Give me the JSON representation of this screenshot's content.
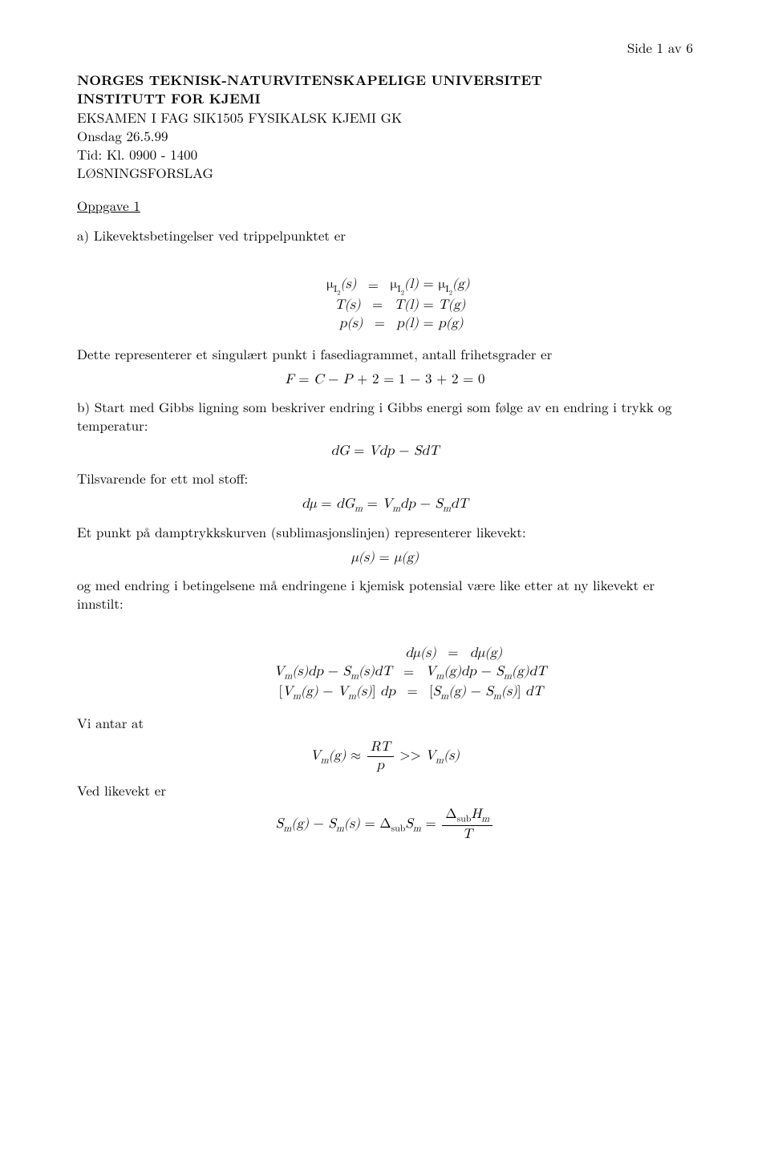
{
  "page": {
    "number_label": "Side 1 av 6"
  },
  "header": {
    "line1": "NORGES TEKNISK-NATURVITENSKAPELIGE UNIVERSITET",
    "line2": "INSTITUTT FOR KJEMI",
    "line3": "EKSAMEN I FAG SIK1505 FYSIKALSK KJEMI GK",
    "line4": "Onsdag 26.5.99",
    "line5": "Tid:  Kl. 0900 - 1400",
    "line6": "LØSNINGSFORSLAG"
  },
  "oppgave1": {
    "title": "Oppgave 1",
    "a_intro": "a)  Likevektsbetingelser ved trippelpunktet er",
    "eq1": {
      "r1_l": "μI₂(s)",
      "r1_m": "=",
      "r1_r": "μI₂(l) = μI₂(g)",
      "r2_l": "T(s)",
      "r2_m": "=",
      "r2_r": "T(l) = T(g)",
      "r3_l": "p(s)",
      "r3_m": "=",
      "r3_r": "p(l) = p(g)"
    },
    "a_after1": "Dette representerer et singulært punkt i fasediagrammet, antall frihetsgrader er",
    "eq2": "F = C − P + 2 = 1 − 3 + 2 = 0",
    "b_intro": "b)  Start med Gibbs ligning som beskriver endring i Gibbs energi som følge av en endring i trykk og temperatur:",
    "eq3": "dG = Vdp − SdT",
    "b_after1": "Tilsvarende for ett mol stoff:",
    "eq4": "dμ = dGₘ = Vₘdp − SₘdT",
    "b_after2": "Et punkt på damptrykkskurven (sublimasjonslinjen) representerer likevekt:",
    "eq5": "μ(s) = μ(g)",
    "b_after3": "og med endring i betingelsene må endringene i kjemisk potensial være like etter at ny likevekt er innstilt:",
    "eq6": {
      "r1_l": "dμ(s)",
      "r1_m": "=",
      "r1_r": "dμ(g)",
      "r2_l": "Vₘ(s)dp − Sₘ(s)dT",
      "r2_m": "=",
      "r2_r": "Vₘ(g)dp − Sₘ(g)dT",
      "r3_l": "[Vₘ(g) − Vₘ(s)] dp",
      "r3_m": "=",
      "r3_r": "[Sₘ(g) − Sₘ(s)] dT"
    },
    "vi_antar": "Vi antar at",
    "eq7_l": "Vₘ(g) ≈",
    "eq7_num": "RT",
    "eq7_den": "p",
    "eq7_r": ">> Vₘ(s)",
    "ved_likevekt": "Ved likevekt er",
    "eq8_l": "Sₘ(g) − Sₘ(s) = Δ",
    "eq8_sub": "sub",
    "eq8_mid": "Sₘ =",
    "eq8_num": "ΔsubHₘ",
    "eq8_den": "T"
  }
}
